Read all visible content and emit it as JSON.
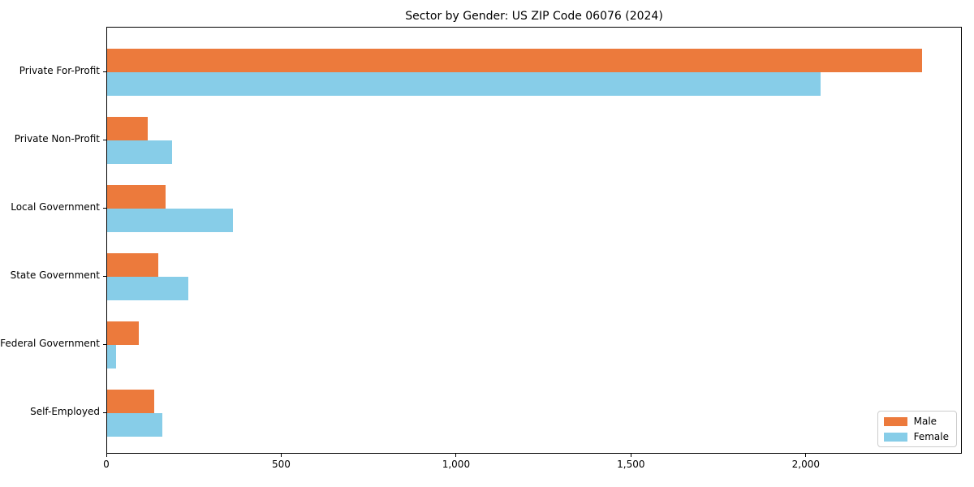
{
  "chart_data": {
    "type": "bar",
    "orientation": "horizontal",
    "title": "Sector by Gender: US ZIP Code 06076 (2024)",
    "xlabel": "",
    "ylabel": "",
    "categories": [
      "Private For-Profit",
      "Private Non-Profit",
      "Local Government",
      "State Government",
      "Federal Government",
      "Self-Employed"
    ],
    "series": [
      {
        "name": "Male",
        "color": "#EC7A3C",
        "values": [
          2330,
          115,
          168,
          145,
          90,
          134
        ]
      },
      {
        "name": "Female",
        "color": "#87CDE8",
        "values": [
          2040,
          185,
          360,
          233,
          25,
          157
        ]
      }
    ],
    "xlim": [
      0,
      2446
    ],
    "xticks": [
      0,
      500,
      1000,
      1500,
      2000
    ],
    "xtick_labels": [
      "0",
      "500",
      "1,000",
      "1,500",
      "2,000"
    ],
    "grid": false,
    "legend_position": "lower right"
  }
}
